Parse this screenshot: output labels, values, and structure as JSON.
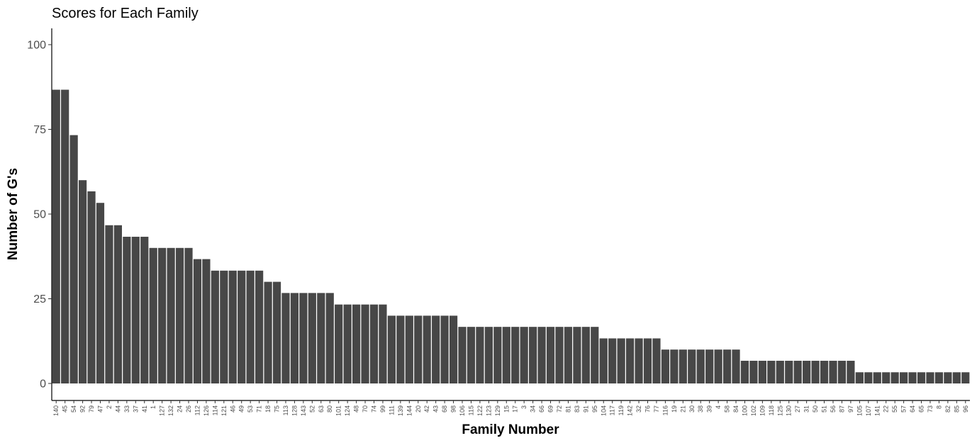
{
  "chart_data": {
    "type": "bar",
    "title": "Scores for Each Family",
    "xlabel": "Family Number",
    "ylabel": "Number of G's",
    "ylim": [
      0,
      105
    ],
    "yticks": [
      "0",
      "25",
      "50",
      "75",
      "100"
    ],
    "grid": false,
    "bar_color": "#474747",
    "categories": [
      "140",
      "45",
      "54",
      "92",
      "79",
      "47",
      "2",
      "44",
      "33",
      "37",
      "41",
      "1",
      "127",
      "132",
      "24",
      "26",
      "112",
      "126",
      "114",
      "121",
      "46",
      "49",
      "53",
      "71",
      "18",
      "75",
      "113",
      "128",
      "143",
      "52",
      "63",
      "80",
      "101",
      "124",
      "48",
      "70",
      "74",
      "99",
      "111",
      "139",
      "144",
      "20",
      "42",
      "43",
      "68",
      "98",
      "106",
      "115",
      "122",
      "123",
      "129",
      "15",
      "17",
      "3",
      "34",
      "66",
      "69",
      "72",
      "81",
      "83",
      "91",
      "95",
      "104",
      "117",
      "119",
      "142",
      "32",
      "76",
      "77",
      "116",
      "19",
      "21",
      "30",
      "38",
      "39",
      "4",
      "58",
      "84",
      "100",
      "102",
      "109",
      "118",
      "125",
      "130",
      "27",
      "31",
      "50",
      "51",
      "56",
      "87",
      "97",
      "105",
      "107",
      "141",
      "22",
      "55",
      "57",
      "64",
      "65",
      "73",
      "8",
      "82",
      "85",
      "96"
    ],
    "values": [
      86.7,
      86.7,
      73.3,
      60,
      56.7,
      53.3,
      46.7,
      46.7,
      43.3,
      43.3,
      43.3,
      40,
      40,
      40,
      40,
      40,
      36.7,
      36.7,
      33.3,
      33.3,
      33.3,
      33.3,
      33.3,
      33.3,
      30,
      30,
      26.7,
      26.7,
      26.7,
      26.7,
      26.7,
      26.7,
      23.3,
      23.3,
      23.3,
      23.3,
      23.3,
      23.3,
      20,
      20,
      20,
      20,
      20,
      20,
      20,
      20,
      16.7,
      16.7,
      16.7,
      16.7,
      16.7,
      16.7,
      16.7,
      16.7,
      16.7,
      16.7,
      16.7,
      16.7,
      16.7,
      16.7,
      16.7,
      16.7,
      13.3,
      13.3,
      13.3,
      13.3,
      13.3,
      13.3,
      13.3,
      10,
      10,
      10,
      10,
      10,
      10,
      10,
      10,
      10,
      6.7,
      6.7,
      6.7,
      6.7,
      6.7,
      6.7,
      6.7,
      6.7,
      6.7,
      6.7,
      6.7,
      6.7,
      6.7,
      3.3,
      3.3,
      3.3,
      3.3,
      3.3,
      3.3,
      3.3,
      3.3,
      3.3,
      3.3,
      3.3,
      3.3,
      3.3
    ]
  }
}
